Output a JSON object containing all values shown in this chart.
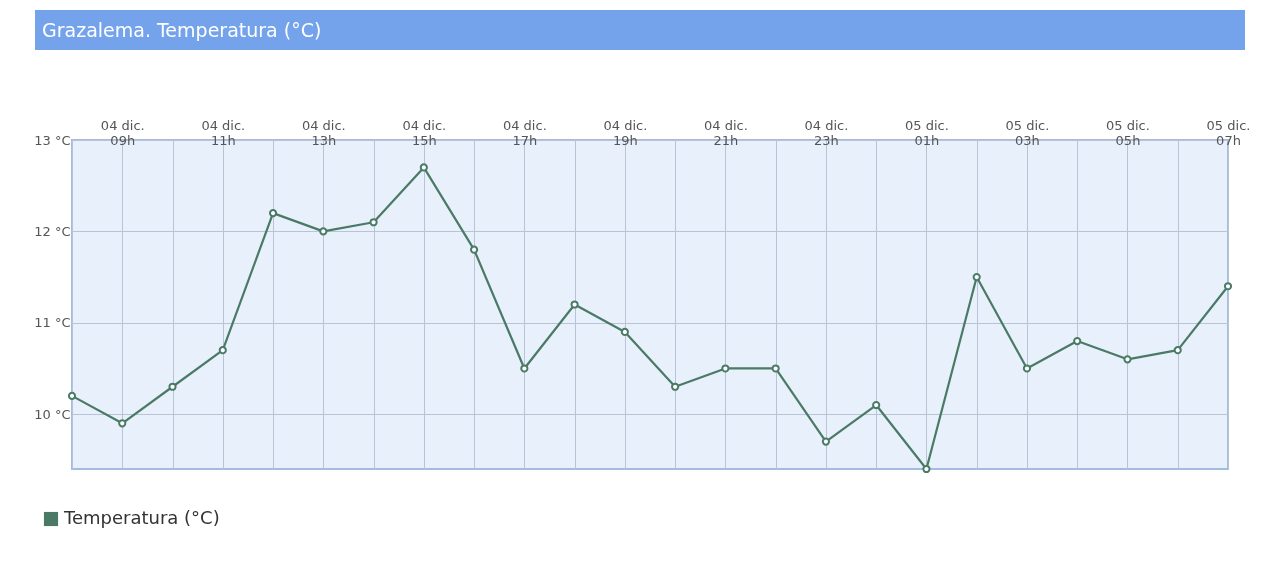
{
  "chart_data": {
    "type": "line",
    "title": "Grazalema. Temperatura (°C)",
    "categories": [
      null,
      "04 dic. 09h",
      null,
      "04 dic. 11h",
      null,
      "04 dic. 13h",
      null,
      "04 dic. 15h",
      null,
      "04 dic. 17h",
      null,
      "04 dic. 19h",
      null,
      "04 dic. 21h",
      null,
      "04 dic. 23h",
      null,
      "05 dic. 01h",
      null,
      "05 dic. 03h",
      null,
      "05 dic. 05h",
      null,
      "05 dic. 07h"
    ],
    "series": [
      {
        "name": "Temperatura (°C)",
        "color": "#4a7a66",
        "values": [
          10.2,
          9.9,
          10.3,
          10.7,
          12.2,
          12.0,
          12.1,
          12.7,
          11.8,
          10.5,
          11.2,
          10.9,
          10.3,
          10.5,
          10.5,
          9.7,
          10.1,
          9.4,
          11.5,
          10.5,
          10.8,
          10.6,
          10.7,
          11.4
        ]
      }
    ],
    "ylim": [
      9.4,
      13
    ],
    "yticks": [
      {
        "value": 10,
        "label": "10 °C"
      },
      {
        "value": 11,
        "label": "11 °C"
      },
      {
        "value": 12,
        "label": "12 °C"
      },
      {
        "value": 13,
        "label": "13 °C"
      }
    ],
    "grid": true,
    "legend": "bottom left",
    "marker": "circle",
    "line_style": "solid"
  }
}
